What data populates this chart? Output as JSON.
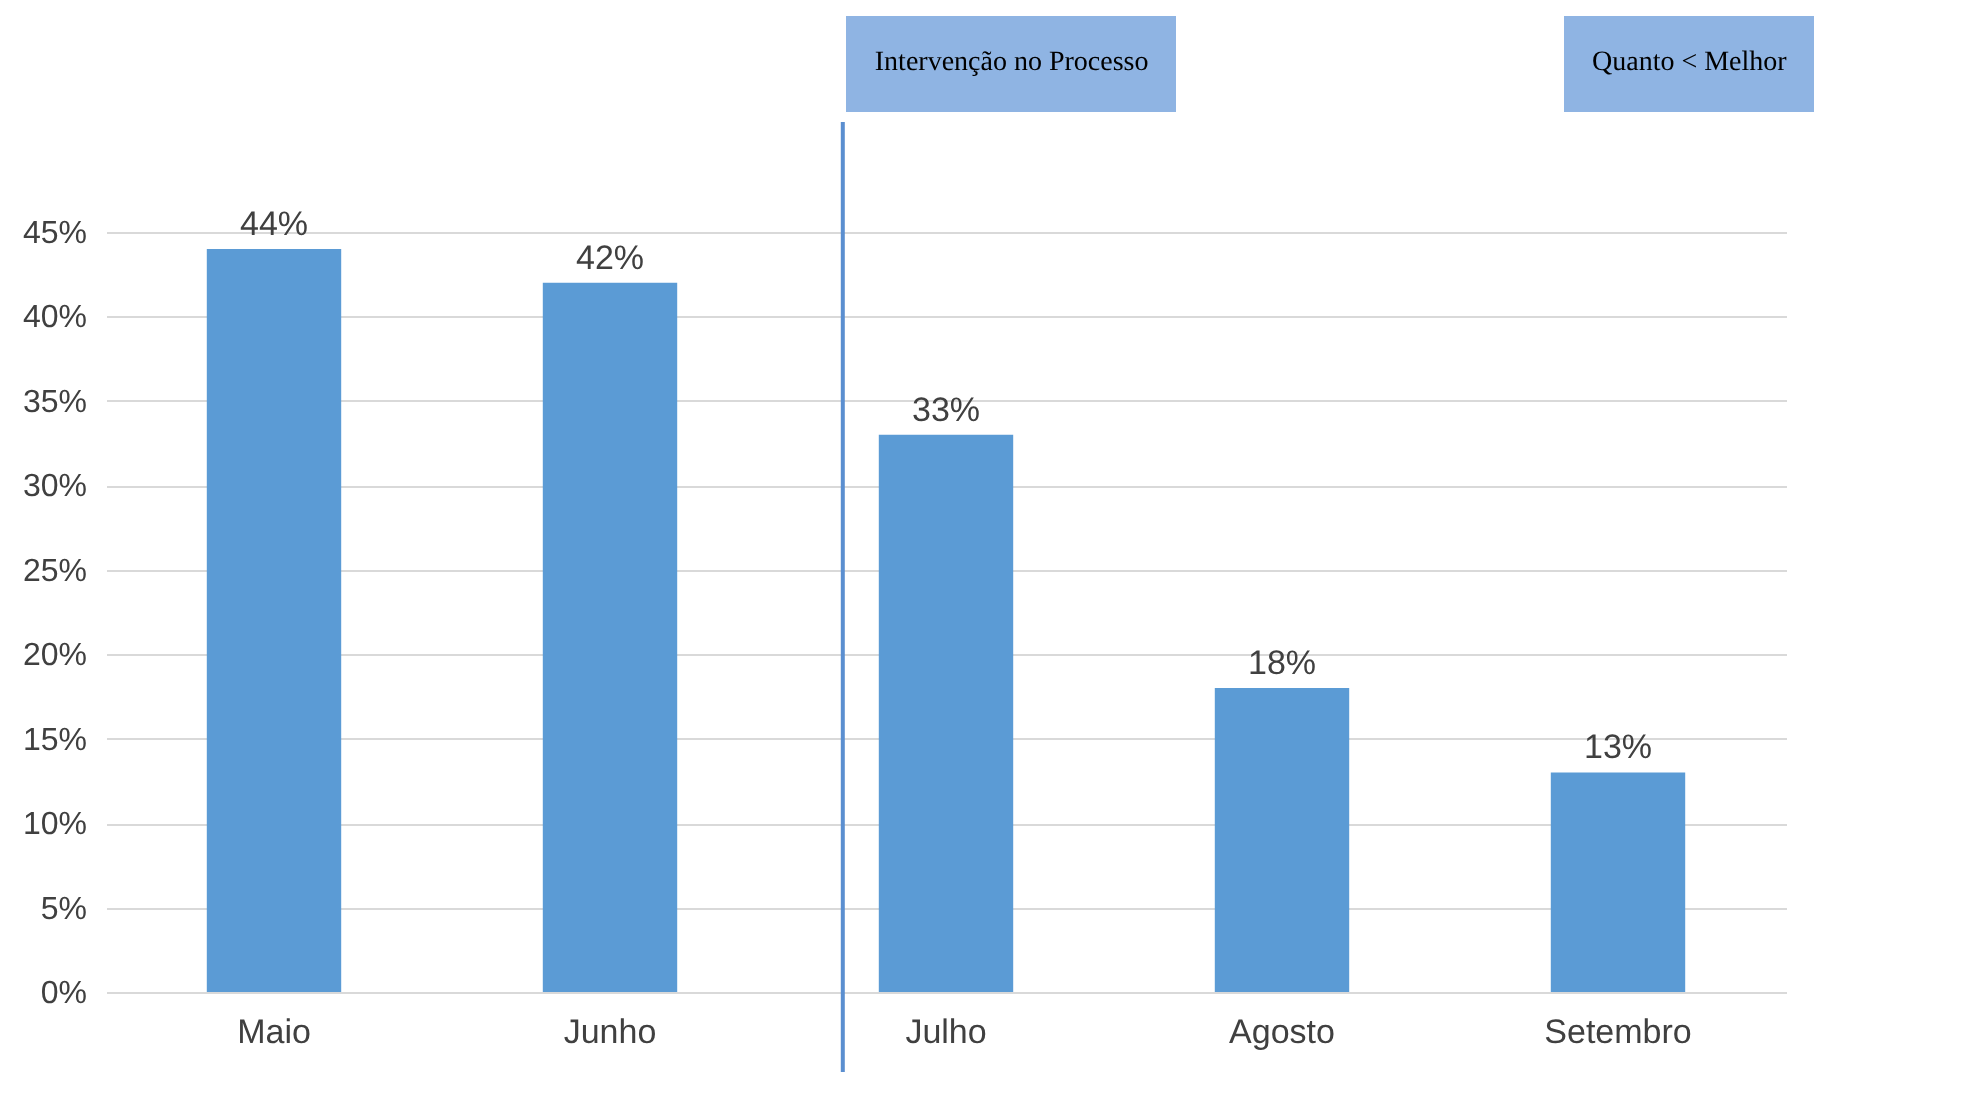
{
  "chart_data": {
    "type": "bar",
    "categories": [
      "Maio",
      "Junho",
      "Julho",
      "Agosto",
      "Setembro"
    ],
    "values": [
      44,
      42,
      33,
      18,
      13
    ],
    "value_labels": [
      "44%",
      "42%",
      "33%",
      "18%",
      "13%"
    ],
    "color": "#5b9bd5",
    "ylim": [
      0,
      45
    ],
    "yticks": [
      {
        "value": 0,
        "label": "0%"
      },
      {
        "value": 5,
        "label": "5%"
      },
      {
        "value": 10,
        "label": "10%"
      },
      {
        "value": 15,
        "label": "15%"
      },
      {
        "value": 20,
        "label": "20%"
      },
      {
        "value": 25,
        "label": "25%"
      },
      {
        "value": 30,
        "label": "30%"
      },
      {
        "value": 35,
        "label": "35%"
      },
      {
        "value": 40,
        "label": "40%"
      },
      {
        "value": 45,
        "label": "45%"
      }
    ],
    "grid": "y",
    "ref_lines": [
      {
        "axis": "x",
        "value": "Julho",
        "label": "Intervenção no Processo",
        "color": "#5b8fd0"
      }
    ],
    "annotations": [
      "Quanto < Melhor"
    ]
  }
}
